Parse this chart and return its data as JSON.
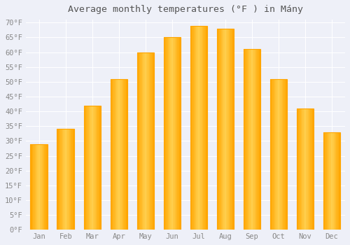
{
  "title": "Average monthly temperatures (°F ) in Mány",
  "months": [
    "Jan",
    "Feb",
    "Mar",
    "Apr",
    "May",
    "Jun",
    "Jul",
    "Aug",
    "Sep",
    "Oct",
    "Nov",
    "Dec"
  ],
  "values": [
    29,
    34,
    42,
    51,
    60,
    65,
    69,
    68,
    61,
    51,
    41,
    33
  ],
  "bar_color_center": "#FFD050",
  "bar_color_edge": "#FFA500",
  "background_color": "#EEF0F8",
  "plot_bg_color": "#EEF0F8",
  "grid_color": "#FFFFFF",
  "text_color": "#888888",
  "title_color": "#555555",
  "ylim": [
    0,
    71
  ],
  "ytick_values": [
    0,
    5,
    10,
    15,
    20,
    25,
    30,
    35,
    40,
    45,
    50,
    55,
    60,
    65,
    70
  ],
  "title_fontsize": 9.5,
  "tick_fontsize": 7.5,
  "bar_width": 0.65
}
